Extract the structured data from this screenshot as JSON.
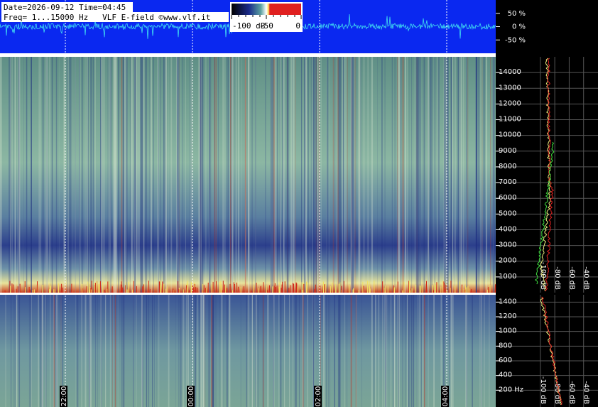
{
  "header": {
    "date_line": "Date=2026-09-12 Time=04:45",
    "freq_line": "Freq= 1...15000 Hz   VLF E-field ©www.vlf.it"
  },
  "colorbar": {
    "labels": [
      "-100 dB",
      "-50",
      "0"
    ]
  },
  "waveform": {
    "ylim": [
      -100,
      100
    ],
    "yticks": [
      {
        "value": 50,
        "label": "50 %"
      },
      {
        "value": 0,
        "label": "0 %"
      },
      {
        "value": -50,
        "label": "-50 %"
      }
    ]
  },
  "spectrogram_upper": {
    "ylim": [
      0,
      15000
    ],
    "yticks": [
      1000,
      2000,
      3000,
      4000,
      5000,
      6000,
      7000,
      8000,
      9000,
      10000,
      11000,
      12000,
      13000,
      14000
    ]
  },
  "spectrogram_lower": {
    "ylim": [
      0,
      1500
    ],
    "yticks": [
      {
        "value": 200,
        "label": "200 Hz"
      },
      400,
      600,
      800,
      1000,
      1200,
      1400
    ]
  },
  "time_axis": {
    "labels": [
      "22:00",
      "00:00",
      "02:00",
      "04:00"
    ]
  },
  "spectrum_axis": {
    "xlim": [
      -160,
      -20
    ],
    "xticks": [
      {
        "value": -100,
        "label": "-100 dB"
      },
      {
        "value": -80,
        "label": "-80 dB"
      },
      {
        "value": -60,
        "label": "-60 dB"
      },
      {
        "value": -40,
        "label": "-40 dB"
      }
    ]
  }
}
